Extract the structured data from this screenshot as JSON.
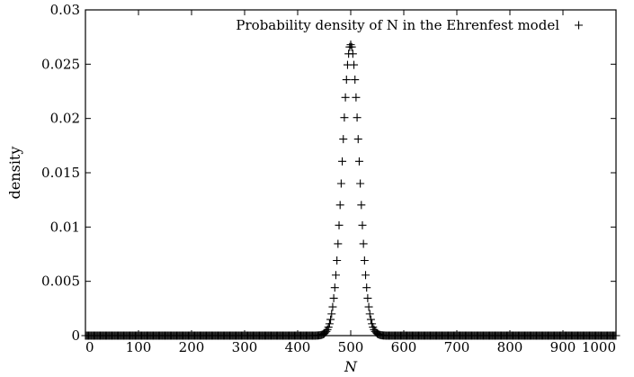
{
  "chart_data": {
    "type": "scatter",
    "title": "",
    "xlabel": "N",
    "ylabel": "density",
    "xlim": [
      0,
      1000
    ],
    "ylim": [
      0,
      0.03
    ],
    "grid": false,
    "legend_position": "top-right",
    "x_ticks": [
      "0",
      "100",
      "200",
      "300",
      "400",
      "500",
      "600",
      "700",
      "800",
      "900",
      "1000"
    ],
    "y_ticks": [
      "0",
      "0.005",
      "0.01",
      "0.015",
      "0.02",
      "0.025",
      "0.03"
    ],
    "marker": "plus",
    "marker_color": "#000000",
    "series": [
      {
        "name": "Probability density of N in the Ehrenfest model",
        "distribution": {
          "mean": 500,
          "std": 15.8,
          "peak": 0.0268,
          "x_min": 0,
          "x_max": 1000,
          "x_step": 2
        }
      }
    ]
  }
}
